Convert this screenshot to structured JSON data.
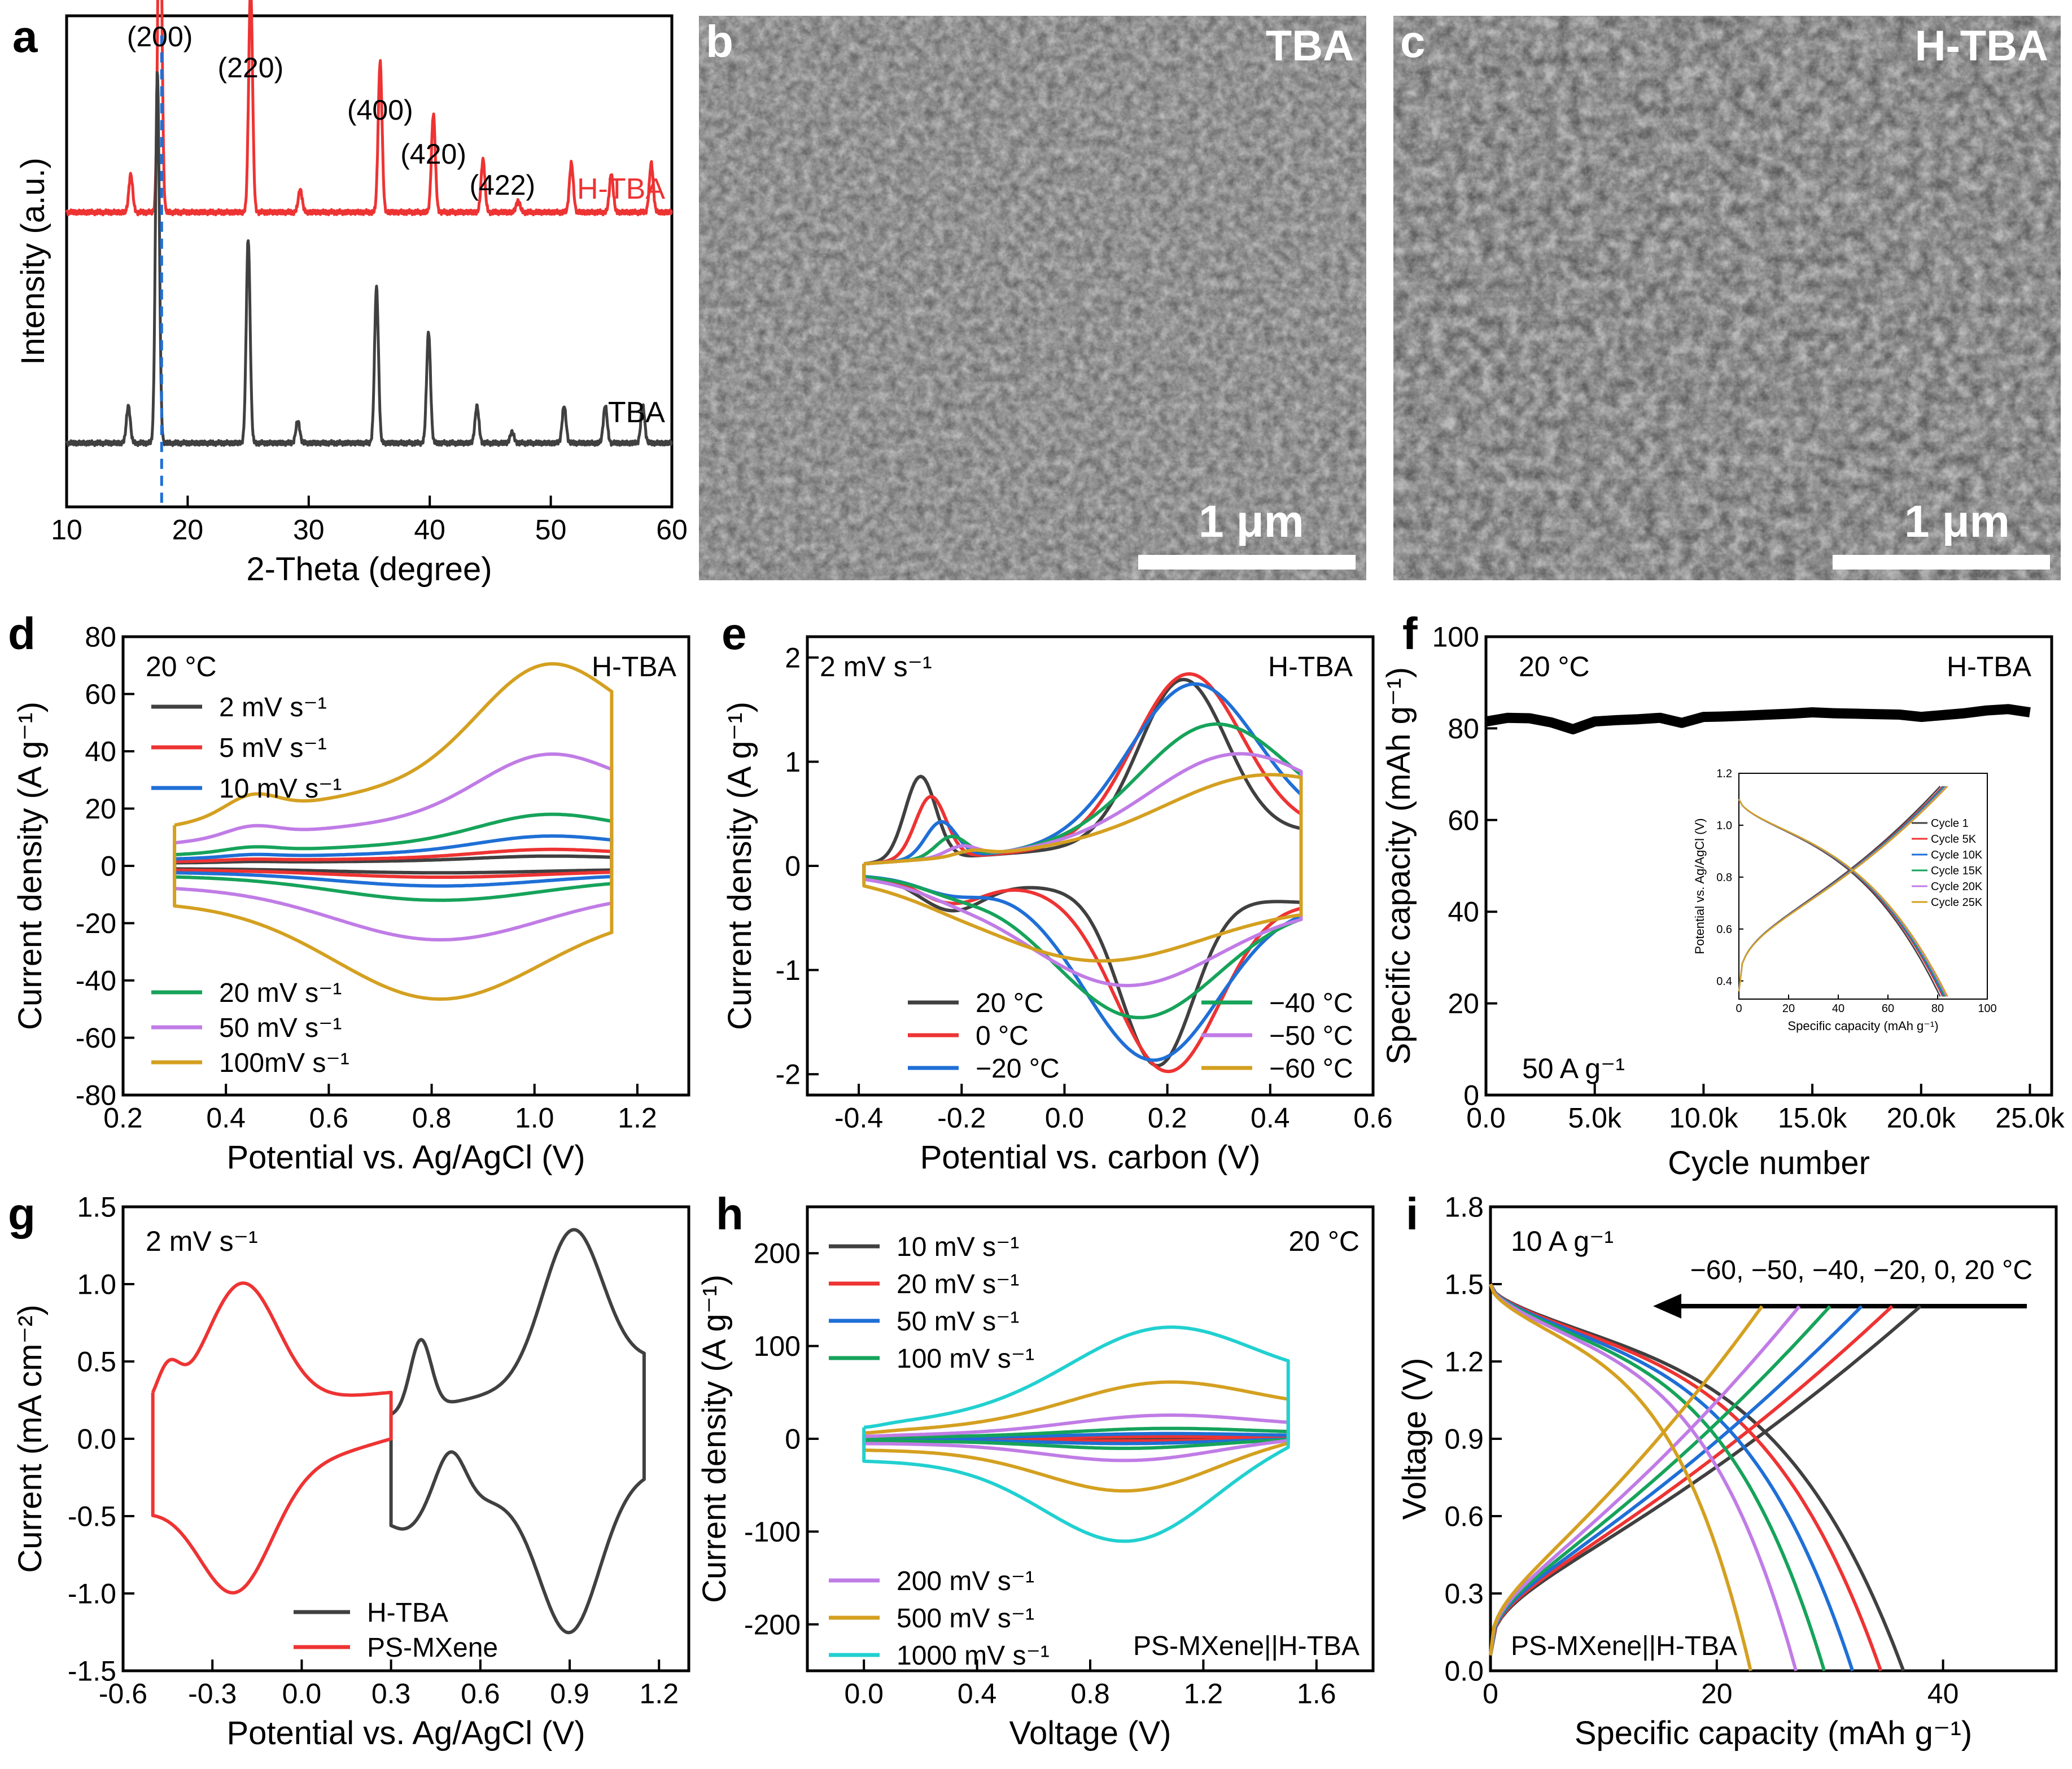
{
  "figure": {
    "panel_letters": [
      "a",
      "b",
      "c",
      "d",
      "e",
      "f",
      "g",
      "h",
      "i"
    ],
    "colors": {
      "black": "#404040",
      "red": "#ee3333",
      "blue": "#1f6fd6",
      "green": "#16a35a",
      "purple": "#c07ce6",
      "gold": "#d4a020",
      "cyan": "#22d0d0",
      "hline": "#1f6fd6"
    }
  },
  "chart_data": [
    {
      "id": "a",
      "type": "line",
      "xlabel": "2-Theta (degree)",
      "ylabel": "Intensity (a.u.)",
      "xlim": [
        10,
        60
      ],
      "xticks": [
        "10",
        "20",
        "30",
        "40",
        "50",
        "60"
      ],
      "series": [
        {
          "name": "H-TBA",
          "color": "red",
          "peaks": [
            [
              15.3,
              0.1
            ],
            [
              17.7,
              1.0
            ],
            [
              25.2,
              0.6
            ],
            [
              29.3,
              0.06
            ],
            [
              35.9,
              0.4
            ],
            [
              40.3,
              0.26
            ],
            [
              44.4,
              0.14
            ],
            [
              47.3,
              0.03
            ],
            [
              51.7,
              0.13
            ],
            [
              55.0,
              0.1
            ],
            [
              58.3,
              0.13
            ]
          ]
        },
        {
          "name": "TBA",
          "color": "black",
          "peaks": [
            [
              15.1,
              0.1
            ],
            [
              17.5,
              1.0
            ],
            [
              25.0,
              0.55
            ],
            [
              29.1,
              0.06
            ],
            [
              35.6,
              0.42
            ],
            [
              39.9,
              0.3
            ],
            [
              43.9,
              0.1
            ],
            [
              46.8,
              0.03
            ],
            [
              51.1,
              0.1
            ],
            [
              54.5,
              0.1
            ],
            [
              57.6,
              0.1
            ]
          ]
        }
      ],
      "annotations": [
        "(200)",
        "(220)",
        "(400)",
        "(420)",
        "(422)"
      ]
    },
    {
      "id": "d",
      "type": "line",
      "xlabel": "Potential vs. Ag/AgCl (V)",
      "ylabel": "Current density (A g⁻¹)",
      "xlim": [
        0.2,
        1.3
      ],
      "ylim": [
        -80,
        80
      ],
      "xticks": [
        "0.2",
        "0.4",
        "0.6",
        "0.8",
        "1.0",
        "1.2"
      ],
      "yticks": [
        "-80",
        "-60",
        "-40",
        "-20",
        "0",
        "20",
        "40",
        "60",
        "80"
      ],
      "title": "20 °C",
      "label": "H-TBA",
      "series": [
        {
          "name": "2 mV s⁻¹",
          "color": "black",
          "scale": 2.5
        },
        {
          "name": "5 mV s⁻¹",
          "color": "red",
          "scale": 4.5
        },
        {
          "name": "10 mV s⁻¹",
          "color": "blue",
          "scale": 8.5
        },
        {
          "name": "20 mV s⁻¹",
          "color": "green",
          "scale": 15
        },
        {
          "name": "50 mV s⁻¹",
          "color": "purple",
          "scale": 33
        },
        {
          "name": "100mV s⁻¹",
          "color": "gold",
          "scale": 60
        }
      ]
    },
    {
      "id": "e",
      "type": "line",
      "xlabel": "Potential vs.  carbon (V)",
      "ylabel": "Current density (A g⁻¹)",
      "xlim": [
        -0.5,
        0.6
      ],
      "ylim": [
        -2.2,
        2.2
      ],
      "xticks": [
        "-0.4",
        "-0.2",
        "0.0",
        "0.2",
        "0.4",
        "0.6"
      ],
      "yticks": [
        "-2",
        "-1",
        "0",
        "1",
        "2"
      ],
      "title": "2 mV s⁻¹",
      "label": "H-TBA",
      "series": [
        {
          "name": "20 °C",
          "color": "black",
          "peak": 1.85,
          "xp": 0.23,
          "xc": 0.18,
          "pre": 0.8
        },
        {
          "name": "0 °C",
          "color": "red",
          "peak": 1.9,
          "xp": 0.24,
          "xc": 0.2,
          "pre": 0.6
        },
        {
          "name": "−20 °C",
          "color": "blue",
          "peak": 1.8,
          "xp": 0.25,
          "xc": 0.17,
          "pre": 0.35
        },
        {
          "name": "−40 °C",
          "color": "green",
          "peak": 1.4,
          "xp": 0.29,
          "xc": 0.14,
          "pre": 0.2
        },
        {
          "name": "−50 °C",
          "color": "purple",
          "peak": 1.1,
          "xp": 0.33,
          "xc": 0.11,
          "pre": 0.1
        },
        {
          "name": "−60 °C",
          "color": "gold",
          "peak": 0.88,
          "xp": 0.38,
          "xc": 0.05,
          "pre": 0.05
        }
      ]
    },
    {
      "id": "f",
      "type": "line",
      "xlabel": "Cycle number",
      "ylabel": "Specific capacity (mAh g⁻¹)",
      "xlim": [
        0,
        26000
      ],
      "ylim": [
        0,
        100
      ],
      "xticks": [
        "0.0",
        "5.0k",
        "10.0k",
        "15.0k",
        "20.0k",
        "25.0k"
      ],
      "yticks": [
        "0",
        "20",
        "40",
        "60",
        "80",
        "100"
      ],
      "title": "20 °C",
      "label": "H-TBA",
      "note": "50 A g⁻¹",
      "x": [
        0,
        1000,
        2000,
        3000,
        4000,
        5000,
        6000,
        7000,
        8000,
        9000,
        10000,
        11000,
        12000,
        13000,
        14000,
        15000,
        16000,
        17000,
        18000,
        19000,
        20000,
        21000,
        22000,
        23000,
        24000,
        25000
      ],
      "y": [
        81.5,
        82.3,
        82.2,
        81.3,
        79.8,
        81.5,
        81.8,
        82.0,
        82.3,
        81.2,
        82.5,
        82.6,
        82.8,
        83.0,
        83.2,
        83.5,
        83.3,
        83.2,
        83.1,
        83.0,
        82.5,
        82.9,
        83.3,
        83.9,
        84.2,
        83.5
      ],
      "inset": {
        "xlabel": "Specific capacity (mAh g⁻¹)",
        "ylabel": "Potential vs. Ag/AgCl (V)",
        "xlim": [
          0,
          100
        ],
        "ylim": [
          0.33,
          1.2
        ],
        "xticks": [
          "0",
          "20",
          "40",
          "60",
          "80",
          "100"
        ],
        "yticks": [
          "0.4",
          "0.6",
          "0.8",
          "1.0",
          "1.2"
        ],
        "series": [
          {
            "name": "Cycle 1",
            "color": "black",
            "cap": 81
          },
          {
            "name": "Cycle 5K",
            "color": "red",
            "cap": 82
          },
          {
            "name": "Cycle 10K",
            "color": "blue",
            "cap": 82.5
          },
          {
            "name": "Cycle 15K",
            "color": "green",
            "cap": 83
          },
          {
            "name": "Cycle 20K",
            "color": "purple",
            "cap": 83.5
          },
          {
            "name": "Cycle 25K",
            "color": "gold",
            "cap": 84
          }
        ]
      }
    },
    {
      "id": "g",
      "type": "line",
      "xlabel": "Potential vs. Ag/AgCl (V)",
      "ylabel": "Current (mA cm⁻²)",
      "xlim": [
        -0.6,
        1.3
      ],
      "ylim": [
        -1.5,
        1.5
      ],
      "xticks": [
        "-0.6",
        "-0.3",
        "0.0",
        "0.3",
        "0.6",
        "0.9",
        "1.2"
      ],
      "yticks": [
        "-1.5",
        "-1.0",
        "-0.5",
        "0.0",
        "0.5",
        "1.0",
        "1.5"
      ],
      "title": "2 mV s⁻¹",
      "series": [
        {
          "name": "H-TBA",
          "color": "black"
        },
        {
          "name": "PS-MXene",
          "color": "red"
        }
      ]
    },
    {
      "id": "h",
      "type": "line",
      "xlabel": "Voltage (V)",
      "ylabel": "Current density (A g⁻¹)",
      "xlim": [
        -0.2,
        1.8
      ],
      "ylim": [
        -250,
        250
      ],
      "xticks": [
        "0.0",
        "0.4",
        "0.8",
        "1.2",
        "1.6"
      ],
      "yticks": [
        "-200",
        "-100",
        "0",
        "100",
        "200"
      ],
      "title": "20 °C",
      "label": "PS-MXene||H-TBA",
      "series": [
        {
          "name": "10 mV s⁻¹",
          "color": "black",
          "scale": 1.2
        },
        {
          "name": "20 mV s⁻¹",
          "color": "red",
          "scale": 2.5
        },
        {
          "name": "50 mV s⁻¹",
          "color": "blue",
          "scale": 5.5
        },
        {
          "name": "100 mV s⁻¹",
          "color": "green",
          "scale": 11
        },
        {
          "name": "200 mV s⁻¹",
          "color": "purple",
          "scale": 25
        },
        {
          "name": "500 mV s⁻¹",
          "color": "gold",
          "scale": 60
        },
        {
          "name": "1000 mV s⁻¹",
          "color": "cyan",
          "scale": 118
        }
      ]
    },
    {
      "id": "i",
      "type": "line",
      "xlabel": "Specific capacity (mAh g⁻¹)",
      "ylabel": "Voltage (V)",
      "xlim": [
        0,
        50
      ],
      "ylim": [
        0,
        1.8
      ],
      "xticks": [
        "0",
        "20",
        "40"
      ],
      "yticks": [
        "0.0",
        "0.3",
        "0.6",
        "0.9",
        "1.2",
        "1.5",
        "1.8"
      ],
      "title": "10 A g⁻¹",
      "label": "PS-MXene||H-TBA",
      "arrow_label": "−60, −50, −40, −20, 0, 20 °C",
      "series": [
        {
          "name": "20 °C",
          "color": "black",
          "cap": 36.5,
          "chg": 38
        },
        {
          "name": "0 °C",
          "color": "red",
          "cap": 34.5,
          "chg": 35.5
        },
        {
          "name": "−20 °C",
          "color": "blue",
          "cap": 32,
          "chg": 32.8
        },
        {
          "name": "−40 °C",
          "color": "green",
          "cap": 29.5,
          "chg": 30
        },
        {
          "name": "−50 °C",
          "color": "purple",
          "cap": 27,
          "chg": 27.3
        },
        {
          "name": "−60 °C",
          "color": "gold",
          "cap": 23,
          "chg": 24
        }
      ]
    }
  ],
  "sem_images": [
    {
      "id": "b",
      "label": "TBA",
      "scale_text": "1 μm"
    },
    {
      "id": "c",
      "label": "H-TBA",
      "scale_text": "1 μm"
    }
  ]
}
